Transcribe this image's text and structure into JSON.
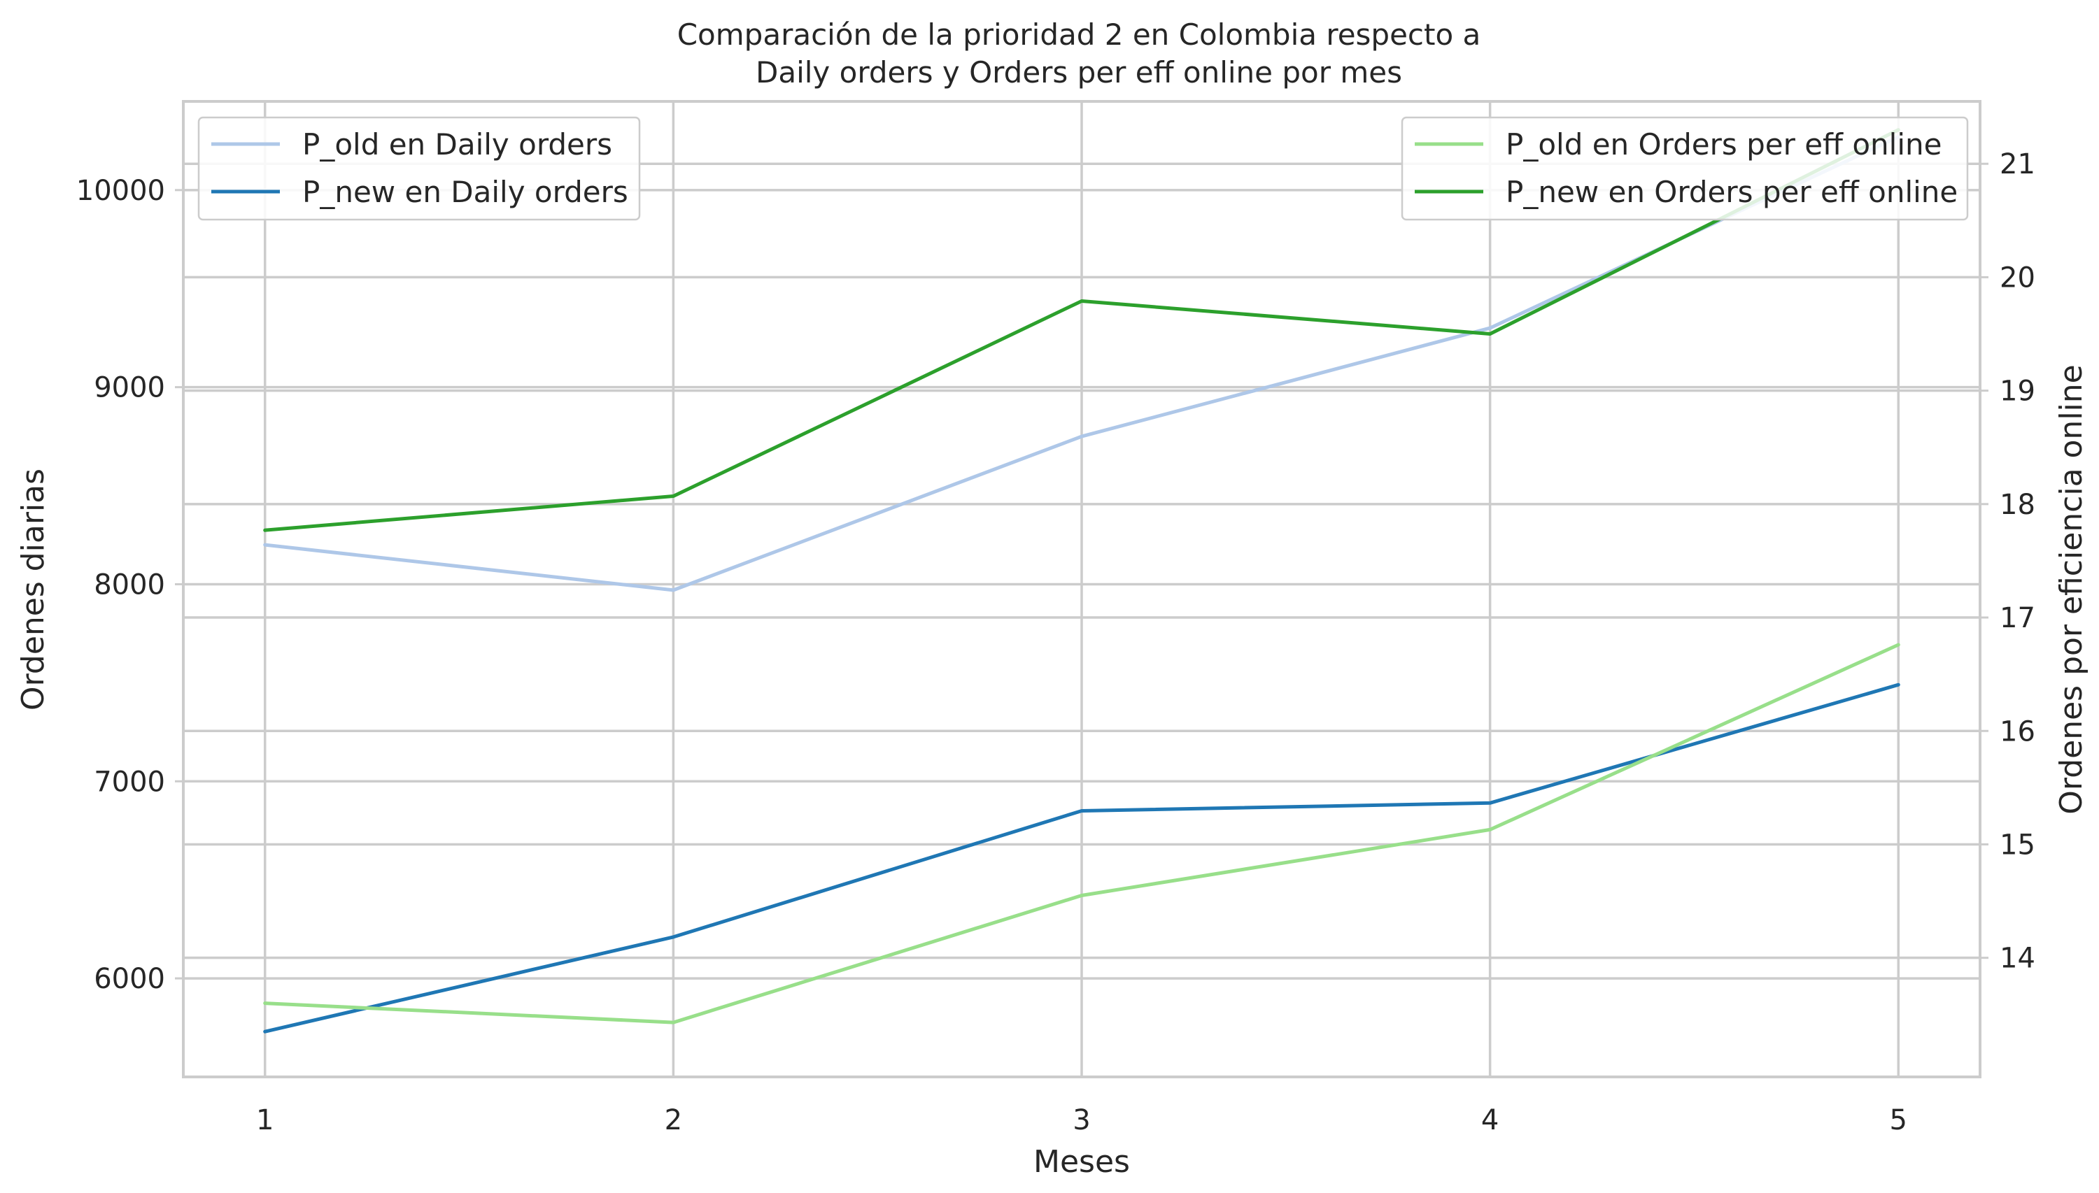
{
  "chart_data": {
    "type": "line",
    "title_line1": "Comparación de la prioridad 2 en Colombia respecto a",
    "title_line2": "Daily orders y Orders per eff online por mes",
    "xlabel": "Meses",
    "ylabel_left": "Ordenes diarias",
    "ylabel_right": "Ordenes por eficiencia online",
    "x": [
      1,
      2,
      3,
      4,
      5
    ],
    "xlim": [
      0.8,
      5.2
    ],
    "ylim_left": [
      5500,
      10450
    ],
    "ylim_right": [
      12.95,
      21.55
    ],
    "yticks_left": [
      6000,
      7000,
      8000,
      9000,
      10000
    ],
    "yticks_right": [
      14,
      15,
      16,
      17,
      18,
      19,
      20,
      21
    ],
    "grid": true,
    "series_left": [
      {
        "name": "P_old en Daily orders",
        "color": "#aec7e8",
        "values": [
          8200,
          7970,
          8750,
          9300,
          10270
        ]
      },
      {
        "name": "P_new en Daily orders",
        "color": "#1f77b4",
        "values": [
          5730,
          6210,
          6850,
          6890,
          7490
        ]
      }
    ],
    "series_right": [
      {
        "name": "P_old en Orders per eff online",
        "color": "#98df8a",
        "values": [
          13.6,
          13.43,
          14.55,
          15.13,
          16.76
        ]
      },
      {
        "name": "P_new en Orders per eff online",
        "color": "#2ca02c",
        "values": [
          17.77,
          18.07,
          19.79,
          19.5,
          21.3
        ]
      }
    ],
    "legend_left_placement": "upper-left",
    "legend_right_placement": "upper-right"
  }
}
